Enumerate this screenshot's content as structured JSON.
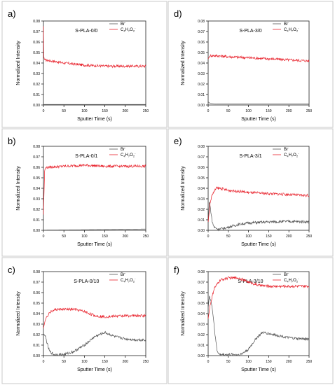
{
  "figure": {
    "x_axis_title": "Sputter Time (s)",
    "y_axis_title": "Normalized Intensity",
    "legend": [
      {
        "label": "Br",
        "sup": "-",
        "color": "#555555"
      },
      {
        "label": "C4H7O2",
        "sub_parts": [
          "C",
          "4",
          "H",
          "7",
          "O",
          "2"
        ],
        "sup": "-",
        "color": "#e8212b"
      }
    ]
  },
  "chart_data": [
    {
      "type": "line",
      "letter": "a)",
      "title": "S-PLA-0/0",
      "xlim": [
        0,
        250
      ],
      "ylim": [
        0,
        0.08
      ],
      "xticks": [
        0,
        50,
        100,
        150,
        200,
        250
      ],
      "yticks": [
        0.0,
        0.01,
        0.02,
        0.03,
        0.04,
        0.05,
        0.06,
        0.07,
        0.08
      ],
      "series": [
        {
          "name": "Br-",
          "color": "#555555",
          "points": [
            [
              0,
              0.0005
            ],
            [
              250,
              0.0005
            ]
          ]
        },
        {
          "name": "C4H7O2-",
          "color": "#e8212b",
          "points": [
            [
              0,
              0.075
            ],
            [
              1,
              0.045
            ],
            [
              3,
              0.043
            ],
            [
              50,
              0.04
            ],
            [
              100,
              0.038
            ],
            [
              150,
              0.037
            ],
            [
              200,
              0.037
            ],
            [
              250,
              0.037
            ]
          ]
        }
      ]
    },
    {
      "type": "line",
      "letter": "d)",
      "title": "S-PLA-3/0",
      "xlim": [
        0,
        250
      ],
      "ylim": [
        0,
        0.08
      ],
      "xticks": [
        0,
        50,
        100,
        150,
        200,
        250
      ],
      "yticks": [
        0.0,
        0.01,
        0.02,
        0.03,
        0.04,
        0.05,
        0.06,
        0.07,
        0.08
      ],
      "series": [
        {
          "name": "Br-",
          "color": "#555555",
          "points": [
            [
              0,
              0.003
            ],
            [
              5,
              0.0015
            ],
            [
              20,
              0.001
            ],
            [
              250,
              0.001
            ]
          ]
        },
        {
          "name": "C4H7O2-",
          "color": "#e8212b",
          "points": [
            [
              0,
              0.044
            ],
            [
              5,
              0.047
            ],
            [
              20,
              0.047
            ],
            [
              50,
              0.046
            ],
            [
              100,
              0.045
            ],
            [
              150,
              0.044
            ],
            [
              200,
              0.043
            ],
            [
              250,
              0.042
            ]
          ]
        }
      ]
    },
    {
      "type": "line",
      "letter": "b)",
      "title": "S-PLA-0/1",
      "xlim": [
        0,
        250
      ],
      "ylim": [
        0,
        0.08
      ],
      "xticks": [
        0,
        50,
        100,
        150,
        200,
        250
      ],
      "yticks": [
        0.0,
        0.01,
        0.02,
        0.03,
        0.04,
        0.05,
        0.06,
        0.07,
        0.08
      ],
      "series": [
        {
          "name": "Br-",
          "color": "#555555",
          "points": [
            [
              0,
              0.0002
            ],
            [
              100,
              0.0005
            ],
            [
              250,
              0.0012
            ]
          ]
        },
        {
          "name": "C4H7O2-",
          "color": "#e8212b",
          "points": [
            [
              0,
              0.015
            ],
            [
              3,
              0.058
            ],
            [
              8,
              0.06
            ],
            [
              50,
              0.061
            ],
            [
              100,
              0.062
            ],
            [
              150,
              0.061
            ],
            [
              200,
              0.061
            ],
            [
              250,
              0.061
            ]
          ]
        }
      ]
    },
    {
      "type": "line",
      "letter": "e)",
      "title": "S-PLA-3/1",
      "xlim": [
        0,
        250
      ],
      "ylim": [
        0,
        0.08
      ],
      "xticks": [
        0,
        50,
        100,
        150,
        200,
        250
      ],
      "yticks": [
        0.0,
        0.01,
        0.02,
        0.03,
        0.04,
        0.05,
        0.06,
        0.07,
        0.08
      ],
      "series": [
        {
          "name": "Br-",
          "color": "#555555",
          "points": [
            [
              0,
              0.005
            ],
            [
              3,
              0.028
            ],
            [
              6,
              0.02
            ],
            [
              10,
              0.008
            ],
            [
              15,
              0.003
            ],
            [
              25,
              0.001
            ],
            [
              40,
              0.002
            ],
            [
              60,
              0.004
            ],
            [
              80,
              0.006
            ],
            [
              100,
              0.007
            ],
            [
              150,
              0.008
            ],
            [
              200,
              0.0085
            ],
            [
              250,
              0.008
            ]
          ]
        },
        {
          "name": "C4H7O2-",
          "color": "#e8212b",
          "points": [
            [
              0,
              0.008
            ],
            [
              5,
              0.026
            ],
            [
              10,
              0.034
            ],
            [
              20,
              0.04
            ],
            [
              30,
              0.04
            ],
            [
              50,
              0.038
            ],
            [
              80,
              0.037
            ],
            [
              100,
              0.036
            ],
            [
              150,
              0.035
            ],
            [
              200,
              0.034
            ],
            [
              250,
              0.033
            ]
          ]
        }
      ]
    },
    {
      "type": "line",
      "letter": "c)",
      "title": "S-PLA-0/10",
      "xlim": [
        0,
        250
      ],
      "ylim": [
        0,
        0.08
      ],
      "xticks": [
        0,
        50,
        100,
        150,
        200,
        250
      ],
      "yticks": [
        0.0,
        0.01,
        0.02,
        0.03,
        0.04,
        0.05,
        0.06,
        0.07,
        0.08
      ],
      "series": [
        {
          "name": "Br-",
          "color": "#555555",
          "points": [
            [
              0,
              0.021
            ],
            [
              5,
              0.018
            ],
            [
              10,
              0.01
            ],
            [
              15,
              0.004
            ],
            [
              25,
              0.001
            ],
            [
              50,
              0.001
            ],
            [
              75,
              0.004
            ],
            [
              100,
              0.01
            ],
            [
              125,
              0.018
            ],
            [
              150,
              0.022
            ],
            [
              175,
              0.018
            ],
            [
              200,
              0.016
            ],
            [
              225,
              0.015
            ],
            [
              250,
              0.015
            ]
          ]
        },
        {
          "name": "C4H7O2-",
          "color": "#e8212b",
          "points": [
            [
              0,
              0.026
            ],
            [
              5,
              0.035
            ],
            [
              15,
              0.041
            ],
            [
              30,
              0.044
            ],
            [
              50,
              0.044
            ],
            [
              75,
              0.044
            ],
            [
              100,
              0.042
            ],
            [
              125,
              0.038
            ],
            [
              150,
              0.037
            ],
            [
              200,
              0.038
            ],
            [
              250,
              0.038
            ]
          ]
        }
      ]
    },
    {
      "type": "line",
      "letter": "f)",
      "title": "S-PLA-3/10",
      "xlim": [
        0,
        250
      ],
      "ylim": [
        0,
        0.08
      ],
      "xticks": [
        0,
        50,
        100,
        150,
        200,
        250
      ],
      "yticks": [
        0.0,
        0.01,
        0.02,
        0.03,
        0.04,
        0.05,
        0.06,
        0.07,
        0.08
      ],
      "series": [
        {
          "name": "Br-",
          "color": "#555555",
          "points": [
            [
              0,
              0.045
            ],
            [
              3,
              0.057
            ],
            [
              7,
              0.052
            ],
            [
              12,
              0.04
            ],
            [
              17,
              0.02
            ],
            [
              22,
              0.005
            ],
            [
              28,
              0.001
            ],
            [
              50,
              0.001
            ],
            [
              80,
              0.001
            ],
            [
              100,
              0.006
            ],
            [
              120,
              0.017
            ],
            [
              135,
              0.022
            ],
            [
              150,
              0.021
            ],
            [
              175,
              0.019
            ],
            [
              200,
              0.017
            ],
            [
              225,
              0.016
            ],
            [
              250,
              0.016
            ]
          ]
        },
        {
          "name": "C4H7O2-",
          "color": "#e8212b",
          "points": [
            [
              0,
              0.035
            ],
            [
              5,
              0.048
            ],
            [
              15,
              0.064
            ],
            [
              30,
              0.072
            ],
            [
              50,
              0.074
            ],
            [
              75,
              0.074
            ],
            [
              100,
              0.07
            ],
            [
              125,
              0.067
            ],
            [
              150,
              0.066
            ],
            [
              200,
              0.066
            ],
            [
              250,
              0.066
            ]
          ]
        }
      ]
    }
  ]
}
